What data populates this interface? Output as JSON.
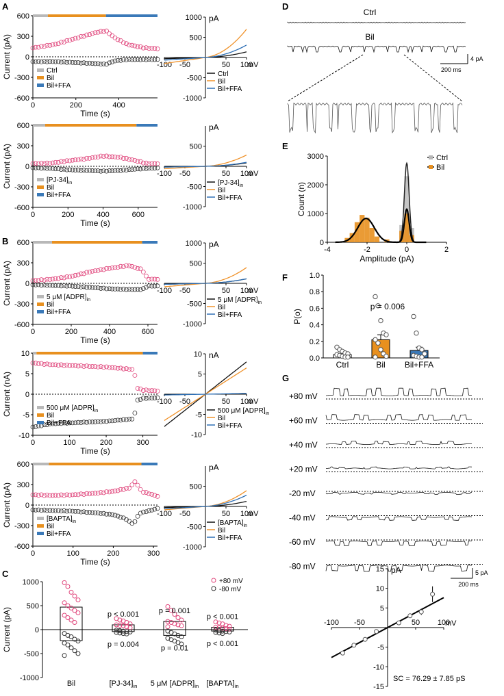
{
  "colors": {
    "ctrl_gray": "#b8b8b8",
    "bil_orange": "#e8901f",
    "ffa_blue": "#3a79b8",
    "pos_pink": "#e0457b",
    "neg_dark": "#333333",
    "iv_ctrl": "#111111",
    "iv_bil": "#f0922a",
    "iv_ffa": "#2d6fb5",
    "line": "#000000"
  },
  "panel_letters": {
    "A": "A",
    "B": "B",
    "C": "C",
    "D": "D",
    "E": "E",
    "F": "F",
    "G": "G"
  },
  "axis_labels": {
    "current_pA": "Current (pA)",
    "current_nA": "Current (nA)",
    "time_s": "Time (s)",
    "pA": "pA",
    "nA": "nA",
    "mV": "mV",
    "count": "Count (n)",
    "amplitude": "Amplitude (pA)",
    "po": "P(o)"
  },
  "tc_panels": [
    {
      "id": "a1",
      "ylim": [
        -600,
        600
      ],
      "yticks": [
        "600",
        "300",
        "0",
        "-300",
        "-600"
      ],
      "xmax": 580,
      "xticks": [
        "0",
        "200",
        "400"
      ],
      "xtickvals": [
        0,
        200,
        400
      ],
      "bars": [
        {
          "end": 70,
          "c": "ctrl"
        },
        {
          "end": 340,
          "c": "bil"
        },
        {
          "end": 580,
          "c": "ffa"
        }
      ],
      "pos": [
        [
          0,
          130
        ],
        [
          100,
          180
        ],
        [
          200,
          270
        ],
        [
          300,
          360
        ],
        [
          340,
          380
        ],
        [
          380,
          280
        ],
        [
          440,
          180
        ],
        [
          520,
          130
        ],
        [
          580,
          120
        ]
      ],
      "neg": [
        [
          0,
          -70
        ],
        [
          100,
          -70
        ],
        [
          200,
          -85
        ],
        [
          300,
          -100
        ],
        [
          340,
          -110
        ],
        [
          380,
          -60
        ],
        [
          440,
          -40
        ],
        [
          520,
          -40
        ],
        [
          580,
          -40
        ]
      ],
      "legend": [
        "Ctrl",
        "Bil",
        "Bil+FFA"
      ]
    },
    {
      "id": "a2",
      "ylim": [
        -600,
        600
      ],
      "yticks": [
        "600",
        "300",
        "0",
        "-300",
        "-600"
      ],
      "xmax": 710,
      "xticks": [
        "0",
        "200",
        "400",
        "600"
      ],
      "xtickvals": [
        0,
        200,
        400,
        600
      ],
      "bars": [
        {
          "end": 70,
          "c": "ctrl"
        },
        {
          "end": 590,
          "c": "bil"
        },
        {
          "end": 710,
          "c": "ffa"
        }
      ],
      "pos": [
        [
          0,
          40
        ],
        [
          100,
          45
        ],
        [
          200,
          80
        ],
        [
          300,
          110
        ],
        [
          400,
          150
        ],
        [
          500,
          130
        ],
        [
          590,
          80
        ],
        [
          650,
          40
        ],
        [
          710,
          40
        ]
      ],
      "neg": [
        [
          0,
          -20
        ],
        [
          100,
          -30
        ],
        [
          200,
          -50
        ],
        [
          300,
          -60
        ],
        [
          400,
          -70
        ],
        [
          500,
          -60
        ],
        [
          590,
          -40
        ],
        [
          650,
          -30
        ],
        [
          710,
          -25
        ]
      ],
      "legend": [
        "[PJ-34]",
        "Bil",
        "Bil+FFA"
      ],
      "legend_sub": "in"
    },
    {
      "id": "b1",
      "ylim": [
        -600,
        600
      ],
      "yticks": [
        "600",
        "300",
        "0",
        "-300",
        "-600"
      ],
      "xmax": 650,
      "xticks": [
        "0",
        "200",
        "400",
        "600"
      ],
      "xtickvals": [
        0,
        200,
        400,
        600
      ],
      "bars": [
        {
          "end": 100,
          "c": "ctrl"
        },
        {
          "end": 570,
          "c": "bil"
        },
        {
          "end": 650,
          "c": "ffa"
        }
      ],
      "pos": [
        [
          0,
          40
        ],
        [
          100,
          60
        ],
        [
          200,
          100
        ],
        [
          300,
          170
        ],
        [
          400,
          220
        ],
        [
          500,
          260
        ],
        [
          570,
          200
        ],
        [
          600,
          60
        ],
        [
          650,
          60
        ]
      ],
      "neg": [
        [
          0,
          -20
        ],
        [
          100,
          -30
        ],
        [
          200,
          -40
        ],
        [
          300,
          -60
        ],
        [
          400,
          -80
        ],
        [
          500,
          -90
        ],
        [
          570,
          -90
        ],
        [
          600,
          -40
        ],
        [
          650,
          -40
        ]
      ],
      "legend": [
        "5 μM [ADPR]",
        "Bil",
        "Bil+FFA"
      ],
      "legend_sub": "in"
    },
    {
      "id": "b2",
      "ylim": [
        -10,
        10
      ],
      "yticks": [
        "10",
        "5",
        "0",
        "-5",
        "-10"
      ],
      "xmax": 340,
      "xticks": [
        "0",
        "100",
        "200",
        "300"
      ],
      "xtickvals": [
        0,
        100,
        200,
        300
      ],
      "bars": [
        {
          "end": 10,
          "c": "ctrl"
        },
        {
          "end": 300,
          "c": "bil"
        },
        {
          "end": 340,
          "c": "ffa"
        }
      ],
      "pos": [
        [
          0,
          7.6
        ],
        [
          50,
          7.2
        ],
        [
          100,
          7
        ],
        [
          150,
          6.8
        ],
        [
          200,
          6.6
        ],
        [
          250,
          6.2
        ],
        [
          275,
          6
        ],
        [
          285,
          1.5
        ],
        [
          300,
          1
        ],
        [
          340,
          0.8
        ]
      ],
      "neg": [
        [
          0,
          -8
        ],
        [
          50,
          -7.2
        ],
        [
          100,
          -7
        ],
        [
          150,
          -6.8
        ],
        [
          200,
          -6.6
        ],
        [
          250,
          -6.2
        ],
        [
          275,
          -6
        ],
        [
          285,
          -1.5
        ],
        [
          300,
          -1
        ],
        [
          340,
          -0.9
        ]
      ],
      "legend": [
        "500 μM [ADPR]",
        "Bil",
        "Bil+FFA"
      ],
      "legend_sub": "in"
    },
    {
      "id": "b3",
      "ylim": [
        -600,
        600
      ],
      "yticks": [
        "600",
        "300",
        "0",
        "-300",
        "-600"
      ],
      "xmax": 310,
      "xticks": [
        "0",
        "100",
        "200",
        "300"
      ],
      "xtickvals": [
        0,
        100,
        200,
        300
      ],
      "bars": [
        {
          "end": 40,
          "c": "ctrl"
        },
        {
          "end": 270,
          "c": "bil"
        },
        {
          "end": 310,
          "c": "ffa"
        }
      ],
      "pos": [
        [
          0,
          150
        ],
        [
          50,
          140
        ],
        [
          100,
          150
        ],
        [
          150,
          170
        ],
        [
          200,
          200
        ],
        [
          240,
          250
        ],
        [
          255,
          350
        ],
        [
          270,
          200
        ],
        [
          310,
          130
        ]
      ],
      "neg": [
        [
          0,
          -70
        ],
        [
          50,
          -80
        ],
        [
          100,
          -90
        ],
        [
          150,
          -110
        ],
        [
          200,
          -140
        ],
        [
          230,
          -200
        ],
        [
          250,
          -280
        ],
        [
          265,
          -120
        ],
        [
          310,
          -50
        ]
      ],
      "legend": [
        "[BAPTA]",
        "Bil",
        "Bil+FFA"
      ],
      "legend_sub": "in"
    }
  ],
  "iv_panels": [
    {
      "id": "a1",
      "unit": "pA",
      "ylim": [
        -1000,
        1000
      ],
      "yticks": [
        "1000",
        "500",
        "-500",
        "-1000"
      ],
      "ytickvals": [
        1000,
        500,
        -500,
        -1000
      ],
      "ctrl_gain": 50,
      "bil_gain": 250,
      "ffa_gain": 110,
      "legend": [
        "Ctrl",
        "Bil",
        "Bil+FFA"
      ]
    },
    {
      "id": "a2",
      "unit": "pA",
      "ylim": [
        -1000,
        1000
      ],
      "yticks": [
        "500",
        "-500",
        "-1000"
      ],
      "ytickvals": [
        500,
        -500,
        -1000
      ],
      "ctrl_gain": 30,
      "bil_gain": 100,
      "ffa_gain": 35,
      "legend": [
        "[PJ-34]",
        "Bil",
        "Bil+FFA"
      ],
      "legend_sub": "in"
    },
    {
      "id": "b1",
      "unit": "pA",
      "ylim": [
        -1000,
        1000
      ],
      "yticks": [
        "1000",
        "500",
        "-500",
        "-1000"
      ],
      "ytickvals": [
        1000,
        500,
        -500,
        -1000
      ],
      "ctrl_gain": 40,
      "bil_gain": 140,
      "ffa_gain": 40,
      "legend": [
        "5 μM [ADPR]",
        "Bil",
        "Bil+FFA"
      ],
      "legend_sub": "in"
    },
    {
      "id": "b2",
      "unit": "nA",
      "ylim": [
        -10,
        10
      ],
      "yticks": [
        "10",
        "5",
        "-5",
        "-10"
      ],
      "ytickvals": [
        10,
        5,
        -5,
        -10
      ],
      "ctrl_gain": 8,
      "bil_gain": 6.5,
      "ffa_gain": 0.2,
      "legend": [
        "500 μM [ADPR]",
        "Bil",
        "Bil+FFA"
      ],
      "legend_sub": "in"
    },
    {
      "id": "b3",
      "unit": "pA",
      "ylim": [
        -1000,
        1000
      ],
      "yticks": [
        "500",
        "-500",
        "-1000"
      ],
      "ytickvals": [
        500,
        -500,
        -1000
      ],
      "ctrl_gain": 45,
      "bil_gain": 140,
      "ffa_gain": 100,
      "legend": [
        "[BAPTA]",
        "Bil",
        "Bil+FFA"
      ],
      "legend_sub": "in"
    }
  ],
  "iv_xticks": [
    "-100",
    "-50",
    "50",
    "100"
  ],
  "iv_xtickvals": [
    -100,
    -50,
    50,
    100
  ],
  "panel_c": {
    "ylim": [
      -1000,
      1000
    ],
    "yticks": [
      "1000",
      "500",
      "0",
      "-500",
      "-1000"
    ],
    "ytickvals": [
      1000,
      500,
      0,
      -500,
      -1000
    ],
    "legend": [
      "+80 mV",
      "-80 mV"
    ],
    "groups": [
      {
        "label": "Bil",
        "pos_mean": 470,
        "neg_mean": -230,
        "pos": [
          980,
          900,
          780,
          700,
          620,
          560,
          500,
          450,
          400,
          350,
          300,
          250,
          200,
          150
        ],
        "neg": [
          -80,
          -120,
          -150,
          -200,
          -240,
          -280,
          -320,
          -380,
          -440,
          -500,
          -540
        ]
      },
      {
        "label": "[PJ-34]",
        "sub": "in",
        "pos_mean": 100,
        "neg_mean": -40,
        "pos": [
          230,
          200,
          180,
          150,
          120,
          100,
          90,
          80,
          60,
          40
        ],
        "neg": [
          -10,
          -20,
          -30,
          -40,
          -50,
          -60,
          -70,
          -80,
          -90
        ],
        "p_top": "p < 0.001",
        "p_bot": "p = 0.004"
      },
      {
        "label": "5 μM [ADPR]",
        "sub": "in",
        "pos_mean": 170,
        "neg_mean": -120,
        "pos": [
          480,
          400,
          320,
          250,
          200,
          170,
          150,
          120,
          100,
          80,
          60
        ],
        "neg": [
          -30,
          -60,
          -90,
          -120,
          -150,
          -180,
          -210,
          -240,
          -270,
          -300
        ],
        "p_top": "p = 0.001",
        "p_bot": "p = 0.01"
      },
      {
        "label": "[BAPTA]",
        "sub": "in",
        "pos_mean": 50,
        "neg_mean": -30,
        "pos": [
          160,
          140,
          120,
          90,
          70,
          50,
          40,
          30,
          20,
          10
        ],
        "neg": [
          -10,
          -20,
          -30,
          -40,
          -50,
          -60,
          -70,
          -80
        ],
        "p_top": "p < 0.001",
        "p_bot": "p < 0.001"
      }
    ]
  },
  "panel_d": {
    "ctrl_label": "Ctrl",
    "bil_label": "Bil",
    "scale_y": "4 pA",
    "scale_x": "200 ms"
  },
  "panel_e": {
    "ylim": [
      0,
      3000
    ],
    "yticks": [
      "3000",
      "2000",
      "1000",
      "0"
    ],
    "ytickvals": [
      3000,
      2000,
      1000,
      0
    ],
    "xlim": [
      -4,
      2
    ],
    "xticks": [
      "-4",
      "-2",
      "0",
      "2"
    ],
    "xtickvals": [
      -4,
      -2,
      0,
      2
    ],
    "legend": [
      "Ctrl",
      "Bil"
    ],
    "ctrl_bins": [
      {
        "x": -0.25,
        "h": 600
      },
      {
        "x": 0,
        "h": 2300
      },
      {
        "x": 0.25,
        "h": 500
      }
    ],
    "bil_bins": [
      {
        "x": -3,
        "h": 150
      },
      {
        "x": -2.75,
        "h": 320
      },
      {
        "x": -2.5,
        "h": 700
      },
      {
        "x": -2.25,
        "h": 950
      },
      {
        "x": -2,
        "h": 850
      },
      {
        "x": -1.75,
        "h": 500
      },
      {
        "x": -1.5,
        "h": 200
      },
      {
        "x": -1,
        "h": 100
      },
      {
        "x": -0.25,
        "h": 400
      },
      {
        "x": 0,
        "h": 1000
      },
      {
        "x": 0.25,
        "h": 250
      }
    ],
    "gauss_ctrl": {
      "mu": 0,
      "sigma": 0.12,
      "amp": 2750
    },
    "gauss_bil": [
      {
        "mu": -2.05,
        "sigma": 0.42,
        "amp": 830
      },
      {
        "mu": 0,
        "sigma": 0.12,
        "amp": 1150
      }
    ]
  },
  "panel_f": {
    "ylim": [
      0,
      1
    ],
    "yticks": [
      "1.0",
      "0.8",
      "0.6",
      "0.4",
      "0.2",
      "0.0"
    ],
    "ytickvals": [
      1,
      0.8,
      0.6,
      0.4,
      0.2,
      0
    ],
    "p_text": "p = 0.006",
    "groups": [
      {
        "label": "Ctrl",
        "mean": 0.04,
        "sem": 0.01,
        "pts": [
          0.13,
          0.1,
          0.08,
          0.06,
          0.05,
          0.04,
          0.03,
          0.02,
          0.01,
          0.01
        ]
      },
      {
        "label": "Bil",
        "mean": 0.22,
        "sem": 0.06,
        "pts": [
          0.74,
          0.63,
          0.45,
          0.3,
          0.28,
          0.22,
          0.18,
          0.1,
          0.05,
          0.02,
          0.01
        ]
      },
      {
        "label": "Bil+FFA",
        "mean": 0.09,
        "sem": 0.04,
        "pts": [
          0.5,
          0.3,
          0.12,
          0.1,
          0.05,
          0.03,
          0.02,
          0.01,
          0.01
        ]
      }
    ]
  },
  "panel_g": {
    "voltages": [
      "+80 mV",
      "+60 mV",
      "+40 mV",
      "+20 mV",
      "-20 mV",
      "-40 mV",
      "-60 mV",
      "-80 mV"
    ],
    "amps": [
      8.5,
      6,
      3.3,
      1.5,
      -1.5,
      -3.5,
      -5,
      -6.5
    ],
    "scale_y": "5 pA",
    "scale_x": "200 ms"
  },
  "panel_g_iv": {
    "xlim": [
      -100,
      100
    ],
    "ylim": [
      -15,
      15
    ],
    "yticks": [
      "15",
      "10",
      "5",
      "-5",
      "-10",
      "-15"
    ],
    "ytickvals": [
      15,
      10,
      5,
      -5,
      -10,
      -15
    ],
    "xticks": [
      "-100",
      "-50",
      "50",
      "100"
    ],
    "xtickvals": [
      -100,
      -50,
      50,
      100
    ],
    "unit_y": "pA",
    "unit_x": "mV",
    "points": [
      {
        "v": -80,
        "i": -6.5,
        "e": 0.5
      },
      {
        "v": -60,
        "i": -4.5,
        "e": 0.5
      },
      {
        "v": -40,
        "i": -3,
        "e": 0.5
      },
      {
        "v": -20,
        "i": -1,
        "e": 0.4
      },
      {
        "v": 20,
        "i": 1.2,
        "e": 0.4
      },
      {
        "v": 40,
        "i": 3,
        "e": 0.5
      },
      {
        "v": 60,
        "i": 4,
        "e": 0.8
      },
      {
        "v": 80,
        "i": 8.5,
        "e": 2
      }
    ],
    "fit_slope": 0.0763,
    "sc_text": "SC = 76.29 ± 7.85 pS"
  }
}
